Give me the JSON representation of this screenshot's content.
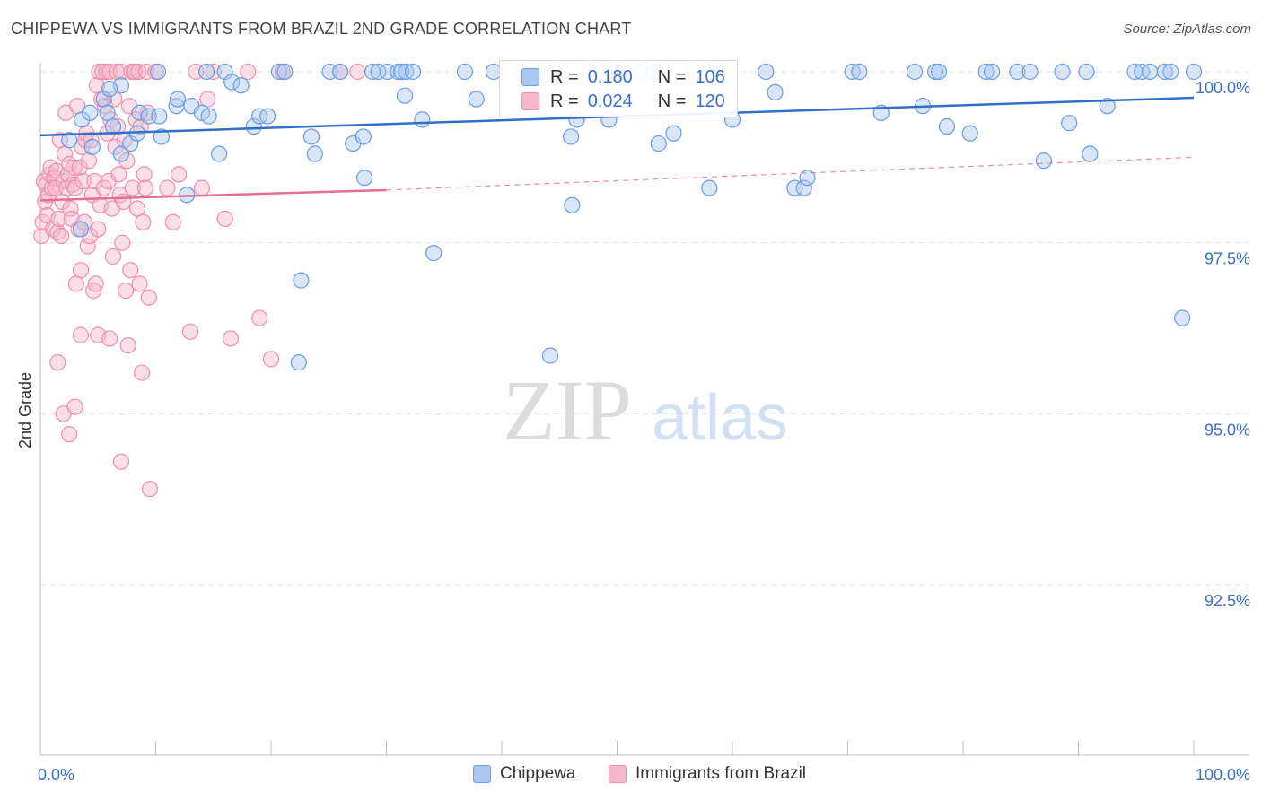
{
  "header": {
    "title": "CHIPPEWA VS IMMIGRANTS FROM BRAZIL 2ND GRADE CORRELATION CHART",
    "source": "Source: ZipAtlas.com"
  },
  "watermark": {
    "zip": "ZIP",
    "atlas": "atlas"
  },
  "legend_top": {
    "r_label": "R =",
    "n_label": "N =",
    "rows": [
      {
        "r": "0.180",
        "n": "106"
      },
      {
        "r": "0.024",
        "n": "120"
      }
    ]
  },
  "colors": {
    "chippewa_fill": "#a9c7f0",
    "chippewa_stroke": "#6b9be0",
    "chippewa_line": "#2f6fc6",
    "brazil_fill": "#f6b8cc",
    "brazil_stroke": "#ee8fae",
    "brazil_line": "#e46f93",
    "tick_text": "#3a6fc9",
    "grid": "#e3e3e3"
  },
  "chart_data": {
    "type": "scatter",
    "title": "CHIPPEWA VS IMMIGRANTS FROM BRAZIL 2ND GRADE CORRELATION CHART",
    "xlabel": "",
    "ylabel": "2nd Grade",
    "xlim": [
      0,
      100
    ],
    "ylim": [
      90.0,
      100.3
    ],
    "x_tick_labels": [
      "0.0%",
      "100.0%"
    ],
    "y_ticks": [
      92.5,
      95.0,
      97.5,
      100.0
    ],
    "y_tick_labels": [
      "92.5%",
      "95.0%",
      "97.5%",
      "100.0%"
    ],
    "grid": true,
    "legend_position": "bottom-center",
    "series": [
      {
        "name": "Chippewa",
        "r": 0.18,
        "n": 106,
        "trend": {
          "x": [
            0,
            100
          ],
          "y": [
            99.07,
            99.62
          ],
          "style": "solid"
        },
        "points": [
          [
            2.5,
            99.0
          ],
          [
            3.6,
            99.3
          ],
          [
            4.3,
            99.4
          ],
          [
            4.5,
            98.9
          ],
          [
            5.5,
            99.6
          ],
          [
            5.8,
            99.4
          ],
          [
            6.3,
            99.2
          ],
          [
            7.0,
            99.8
          ],
          [
            7.0,
            98.8
          ],
          [
            7.8,
            98.95
          ],
          [
            8.4,
            99.1
          ],
          [
            8.6,
            99.4
          ],
          [
            9.4,
            99.35
          ],
          [
            10.2,
            100.0
          ],
          [
            10.3,
            99.35
          ],
          [
            10.5,
            99.05
          ],
          [
            11.8,
            99.5
          ],
          [
            11.9,
            99.6
          ],
          [
            12.7,
            98.2
          ],
          [
            13.1,
            99.5
          ],
          [
            14.0,
            99.4
          ],
          [
            14.4,
            100.0
          ],
          [
            14.6,
            99.35
          ],
          [
            15.5,
            98.8
          ],
          [
            16.0,
            100.0
          ],
          [
            16.6,
            99.85
          ],
          [
            17.4,
            99.8
          ],
          [
            18.5,
            99.2
          ],
          [
            19.0,
            99.35
          ],
          [
            19.7,
            99.35
          ],
          [
            20.7,
            100.0
          ],
          [
            21.2,
            100.0
          ],
          [
            22.6,
            96.95
          ],
          [
            22.4,
            95.75
          ],
          [
            23.5,
            99.05
          ],
          [
            23.8,
            98.8
          ],
          [
            25.1,
            100.0
          ],
          [
            26.0,
            100.0
          ],
          [
            27.1,
            98.95
          ],
          [
            28.0,
            99.05
          ],
          [
            28.1,
            98.45
          ],
          [
            28.8,
            100.0
          ],
          [
            29.3,
            100.0
          ],
          [
            30.1,
            100.0
          ],
          [
            31.0,
            100.0
          ],
          [
            31.3,
            100.0
          ],
          [
            31.7,
            100.0
          ],
          [
            32.3,
            100.0
          ],
          [
            31.6,
            99.65
          ],
          [
            33.1,
            99.3
          ],
          [
            34.1,
            97.35
          ],
          [
            36.8,
            100.0
          ],
          [
            37.8,
            99.6
          ],
          [
            39.3,
            100.0
          ],
          [
            41.7,
            100.0
          ],
          [
            44.2,
            95.85
          ],
          [
            44.6,
            100.0
          ],
          [
            46.1,
            98.05
          ],
          [
            46.0,
            99.05
          ],
          [
            46.5,
            99.3
          ],
          [
            47.6,
            100.0
          ],
          [
            49.3,
            99.3
          ],
          [
            49.8,
            100.0
          ],
          [
            50.5,
            100.0
          ],
          [
            52.1,
            100.0
          ],
          [
            53.2,
            100.0
          ],
          [
            53.7,
            100.0
          ],
          [
            53.6,
            98.95
          ],
          [
            54.9,
            99.1
          ],
          [
            56.7,
            100.0
          ],
          [
            58.1,
            100.0
          ],
          [
            58.0,
            98.3
          ],
          [
            60.0,
            99.3
          ],
          [
            62.9,
            100.0
          ],
          [
            63.7,
            99.7
          ],
          [
            65.4,
            98.3
          ],
          [
            66.2,
            98.3
          ],
          [
            66.5,
            98.45
          ],
          [
            70.4,
            100.0
          ],
          [
            71.0,
            100.0
          ],
          [
            72.9,
            99.4
          ],
          [
            75.8,
            100.0
          ],
          [
            76.5,
            99.5
          ],
          [
            77.6,
            100.0
          ],
          [
            77.9,
            100.0
          ],
          [
            78.6,
            99.2
          ],
          [
            80.6,
            99.1
          ],
          [
            82.0,
            100.0
          ],
          [
            82.5,
            100.0
          ],
          [
            84.7,
            100.0
          ],
          [
            85.8,
            100.0
          ],
          [
            87.0,
            98.7
          ],
          [
            88.6,
            100.0
          ],
          [
            89.2,
            99.25
          ],
          [
            90.7,
            100.0
          ],
          [
            91.0,
            98.8
          ],
          [
            92.5,
            99.5
          ],
          [
            94.9,
            100.0
          ],
          [
            95.5,
            100.0
          ],
          [
            96.2,
            100.0
          ],
          [
            97.5,
            100.0
          ],
          [
            98.0,
            100.0
          ],
          [
            99.0,
            96.4
          ],
          [
            100.0,
            100.0
          ],
          [
            6.0,
            99.75
          ],
          [
            3.5,
            97.7
          ]
        ]
      },
      {
        "name": "Immigrants from Brazil",
        "r": 0.024,
        "n": 120,
        "trend_solid": {
          "x": [
            0,
            30
          ],
          "y": [
            98.12,
            98.27
          ],
          "style": "solid"
        },
        "trend_dashed": {
          "x": [
            30,
            100
          ],
          "y": [
            98.27,
            98.75
          ],
          "style": "dashed"
        },
        "points": [
          [
            0.1,
            97.6
          ],
          [
            0.2,
            97.8
          ],
          [
            0.3,
            98.4
          ],
          [
            0.4,
            98.1
          ],
          [
            0.5,
            98.35
          ],
          [
            0.6,
            97.9
          ],
          [
            0.7,
            98.2
          ],
          [
            0.8,
            98.5
          ],
          [
            0.9,
            98.6
          ],
          [
            1.0,
            98.3
          ],
          [
            1.1,
            97.7
          ],
          [
            1.2,
            98.45
          ],
          [
            1.3,
            98.3
          ],
          [
            1.4,
            98.55
          ],
          [
            1.5,
            97.65
          ],
          [
            1.6,
            97.85
          ],
          [
            1.7,
            99.0
          ],
          [
            1.8,
            97.6
          ],
          [
            1.9,
            98.1
          ],
          [
            2.0,
            98.4
          ],
          [
            2.1,
            98.8
          ],
          [
            2.2,
            99.4
          ],
          [
            2.3,
            98.3
          ],
          [
            2.4,
            98.5
          ],
          [
            2.5,
            98.65
          ],
          [
            2.6,
            98.0
          ],
          [
            2.7,
            97.85
          ],
          [
            2.8,
            98.35
          ],
          [
            2.9,
            98.6
          ],
          [
            3.0,
            98.3
          ],
          [
            3.1,
            96.9
          ],
          [
            3.2,
            99.5
          ],
          [
            3.3,
            97.7
          ],
          [
            3.4,
            98.6
          ],
          [
            3.5,
            97.1
          ],
          [
            3.6,
            98.9
          ],
          [
            3.7,
            98.4
          ],
          [
            3.8,
            97.8
          ],
          [
            3.9,
            99.0
          ],
          [
            4.0,
            99.1
          ],
          [
            4.1,
            97.45
          ],
          [
            4.2,
            98.7
          ],
          [
            4.3,
            97.6
          ],
          [
            4.4,
            99.0
          ],
          [
            4.5,
            98.2
          ],
          [
            4.6,
            96.8
          ],
          [
            4.7,
            98.4
          ],
          [
            4.8,
            96.9
          ],
          [
            4.9,
            99.8
          ],
          [
            5.0,
            97.7
          ],
          [
            5.1,
            100.0
          ],
          [
            5.2,
            98.05
          ],
          [
            5.3,
            99.6
          ],
          [
            5.4,
            100.0
          ],
          [
            5.5,
            98.3
          ],
          [
            5.6,
            99.5
          ],
          [
            5.7,
            100.0
          ],
          [
            5.8,
            99.1
          ],
          [
            5.9,
            98.4
          ],
          [
            6.0,
            100.0
          ],
          [
            6.1,
            99.3
          ],
          [
            6.2,
            98.0
          ],
          [
            6.3,
            97.3
          ],
          [
            6.4,
            99.6
          ],
          [
            6.5,
            98.9
          ],
          [
            6.6,
            100.0
          ],
          [
            6.7,
            99.2
          ],
          [
            6.8,
            98.5
          ],
          [
            6.9,
            98.2
          ],
          [
            7.0,
            100.0
          ],
          [
            7.1,
            97.5
          ],
          [
            7.2,
            98.1
          ],
          [
            7.3,
            99.0
          ],
          [
            7.4,
            96.8
          ],
          [
            7.5,
            98.7
          ],
          [
            7.6,
            96.0
          ],
          [
            7.7,
            99.5
          ],
          [
            7.8,
            97.1
          ],
          [
            7.9,
            100.0
          ],
          [
            8.0,
            98.3
          ],
          [
            8.1,
            100.0
          ],
          [
            8.2,
            100.0
          ],
          [
            8.3,
            99.3
          ],
          [
            8.4,
            98.0
          ],
          [
            8.5,
            100.0
          ],
          [
            8.6,
            96.9
          ],
          [
            8.7,
            99.2
          ],
          [
            8.8,
            95.6
          ],
          [
            8.9,
            97.8
          ],
          [
            9.0,
            98.5
          ],
          [
            9.1,
            98.3
          ],
          [
            9.2,
            100.0
          ],
          [
            9.3,
            99.4
          ],
          [
            9.4,
            96.7
          ],
          [
            10.0,
            100.0
          ],
          [
            11.0,
            98.3
          ],
          [
            11.5,
            97.8
          ],
          [
            12.0,
            98.5
          ],
          [
            13.0,
            96.2
          ],
          [
            13.5,
            100.0
          ],
          [
            14.0,
            98.3
          ],
          [
            14.5,
            99.6
          ],
          [
            15.0,
            100.0
          ],
          [
            16.0,
            97.85
          ],
          [
            16.5,
            96.1
          ],
          [
            18.0,
            100.0
          ],
          [
            19.0,
            96.4
          ],
          [
            20.0,
            95.8
          ],
          [
            21.0,
            100.0
          ],
          [
            26.0,
            100.0
          ],
          [
            27.5,
            100.0
          ],
          [
            1.5,
            95.75
          ],
          [
            2.0,
            95.0
          ],
          [
            2.5,
            94.7
          ],
          [
            3.0,
            95.1
          ],
          [
            3.5,
            96.15
          ],
          [
            5.0,
            96.15
          ],
          [
            6.0,
            96.1
          ],
          [
            7.0,
            94.3
          ],
          [
            9.5,
            93.9
          ]
        ]
      }
    ]
  },
  "bottom_legend": {
    "items": [
      {
        "label": "Chippewa"
      },
      {
        "label": "Immigrants from Brazil"
      }
    ]
  }
}
